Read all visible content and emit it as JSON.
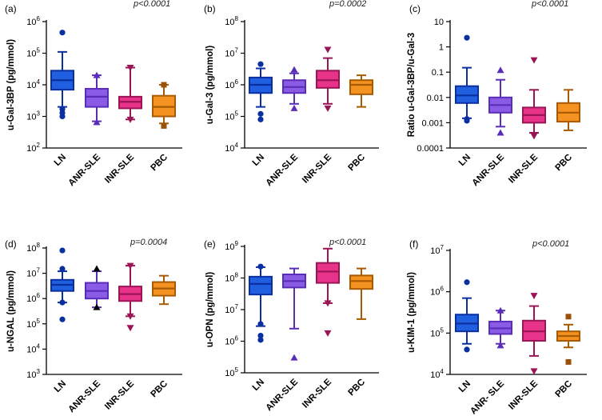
{
  "chart_data": [
    {
      "panel": "(a)",
      "type": "box",
      "pvalue": "p<0.0001",
      "ylabel": "u-Gal-3BP (pg/mmol)",
      "yscale": "log",
      "ylim": [
        100,
        1000000
      ],
      "yticks": [
        {
          "v": 100,
          "base": "10",
          "exp": "2"
        },
        {
          "v": 1000,
          "base": "10",
          "exp": "3"
        },
        {
          "v": 10000,
          "base": "10",
          "exp": "4"
        },
        {
          "v": 100000,
          "base": "10",
          "exp": "5"
        },
        {
          "v": 1000000,
          "base": "10",
          "exp": "6"
        }
      ],
      "categories": [
        "LN",
        "ANR-SLE",
        "INR-SLE",
        "PBC"
      ],
      "boxes": [
        {
          "whisker_low": 2000,
          "q1": 7000,
          "median": 14000,
          "q3": 28000,
          "whisker_high": 110000,
          "outliers": [
            1000,
            1300,
            1700,
            450000
          ]
        },
        {
          "whisker_low": 700,
          "q1": 2000,
          "median": 4200,
          "q3": 7500,
          "whisker_high": 20000,
          "outliers": [
            650,
            20000
          ]
        },
        {
          "whisker_low": 800,
          "q1": 1800,
          "median": 2900,
          "q3": 4200,
          "whisker_high": 35000,
          "outliers": [
            800,
            35000
          ]
        },
        {
          "whisker_low": 600,
          "q1": 1000,
          "median": 2000,
          "q3": 4500,
          "whisker_high": 10000,
          "outliers": [
            500,
            10000
          ]
        }
      ]
    },
    {
      "panel": "(b)",
      "type": "box",
      "pvalue": "p=0.0002",
      "ylabel": "u-Gal-3 (pg/mmol)",
      "yscale": "log",
      "ylim": [
        10000,
        100000000
      ],
      "yticks": [
        {
          "v": 10000,
          "base": "10",
          "exp": "4"
        },
        {
          "v": 100000,
          "base": "10",
          "exp": "5"
        },
        {
          "v": 1000000,
          "base": "10",
          "exp": "6"
        },
        {
          "v": 10000000,
          "base": "10",
          "exp": "7"
        },
        {
          "v": 100000000,
          "base": "10",
          "exp": "8"
        }
      ],
      "categories": [
        "LN",
        "ANR-SLE",
        "INR-SLE",
        "PBC"
      ],
      "boxes": [
        {
          "whisker_low": 200000,
          "q1": 550000,
          "median": 1000000,
          "q3": 1700000,
          "whisker_high": 3300000,
          "outliers": [
            80000,
            120000,
            4500000
          ]
        },
        {
          "whisker_low": 250000,
          "q1": 550000,
          "median": 850000,
          "q3": 1400000,
          "whisker_high": 2300000,
          "outliers": [
            180000,
            3000000
          ]
        },
        {
          "whisker_low": 250000,
          "q1": 800000,
          "median": 1400000,
          "q3": 2800000,
          "whisker_high": 7000000,
          "outliers": [
            180000,
            13000000
          ]
        },
        {
          "whisker_low": 200000,
          "q1": 500000,
          "median": 1000000,
          "q3": 1400000,
          "whisker_high": 2000000,
          "outliers": []
        }
      ]
    },
    {
      "panel": "(c)",
      "type": "box",
      "pvalue": "p<0.0001",
      "ylabel": "Ratio u-Gal-3BP/u-Gal-3",
      "yscale": "log",
      "ylim": [
        0.0001,
        10
      ],
      "yticks": [
        {
          "v": 0.0001,
          "label": "0.0001"
        },
        {
          "v": 0.001,
          "label": "0.001"
        },
        {
          "v": 0.01,
          "label": "0.01"
        },
        {
          "v": 0.1,
          "label": "0.1"
        },
        {
          "v": 1,
          "label": "1"
        },
        {
          "v": 10,
          "label": "10"
        }
      ],
      "categories": [
        "LN",
        "ANR-SLE",
        "INR-SLE",
        "PBC"
      ],
      "boxes": [
        {
          "whisker_low": 0.0015,
          "q1": 0.006,
          "median": 0.012,
          "q3": 0.028,
          "whisker_high": 0.15,
          "outliers": [
            0.0012,
            0.0014,
            2.3
          ]
        },
        {
          "whisker_low": 0.0007,
          "q1": 0.0025,
          "median": 0.005,
          "q3": 0.01,
          "whisker_high": 0.05,
          "outliers": [
            0.0004,
            0.12
          ]
        },
        {
          "whisker_low": 0.0004,
          "q1": 0.001,
          "median": 0.002,
          "q3": 0.004,
          "whisker_high": 0.02,
          "outliers": [
            0.0003,
            0.3
          ]
        },
        {
          "whisker_low": 0.0005,
          "q1": 0.0011,
          "median": 0.0025,
          "q3": 0.006,
          "whisker_high": 0.02,
          "outliers": []
        }
      ]
    },
    {
      "panel": "(d)",
      "type": "box",
      "pvalue": "p=0.0004",
      "ylabel": "u-NGAL (pg/mmol)",
      "yscale": "log",
      "ylim": [
        1000,
        100000000
      ],
      "yticks": [
        {
          "v": 1000,
          "base": "10",
          "exp": "3"
        },
        {
          "v": 10000,
          "base": "10",
          "exp": "4"
        },
        {
          "v": 100000,
          "base": "10",
          "exp": "5"
        },
        {
          "v": 1000000,
          "base": "10",
          "exp": "6"
        },
        {
          "v": 10000000,
          "base": "10",
          "exp": "7"
        },
        {
          "v": 100000000,
          "base": "10",
          "exp": "8"
        }
      ],
      "categories": [
        "LN",
        "ANR-SLE",
        "INR-SLE",
        "PBC"
      ],
      "boxes": [
        {
          "whisker_low": 700000,
          "q1": 2000000,
          "median": 3500000,
          "q3": 5500000,
          "whisker_high": 12000000,
          "outliers": [
            150000,
            700000,
            15000000,
            80000000
          ]
        },
        {
          "whisker_low": 450000,
          "q1": 1000000,
          "median": 2000000,
          "q3": 4200000,
          "whisker_high": 12000000,
          "outliers": [
            450000,
            15000000
          ]
        },
        {
          "whisker_low": 200000,
          "q1": 800000,
          "median": 1500000,
          "q3": 3000000,
          "whisker_high": 20000000,
          "outliers": [
            70000,
            200000,
            20000000
          ]
        },
        {
          "whisker_low": 600000,
          "q1": 1300000,
          "median": 2500000,
          "q3": 4500000,
          "whisker_high": 8000000,
          "outliers": []
        }
      ]
    },
    {
      "panel": "(e)",
      "type": "box",
      "pvalue": "p<0.0001",
      "ylabel": "u-OPN (pg/mmol)",
      "yscale": "log",
      "ylim": [
        100000,
        1000000000
      ],
      "yticks": [
        {
          "v": 100000,
          "base": "10",
          "exp": "5"
        },
        {
          "v": 1000000,
          "base": "10",
          "exp": "6"
        },
        {
          "v": 10000000,
          "base": "10",
          "exp": "7"
        },
        {
          "v": 100000000,
          "base": "10",
          "exp": "8"
        },
        {
          "v": 1000000000,
          "base": "10",
          "exp": "9"
        }
      ],
      "categories": [
        "LN",
        "ANR-SLE",
        "INR-SLE",
        "PBC"
      ],
      "boxes": [
        {
          "whisker_low": 3000000,
          "q1": 30000000,
          "median": 65000000,
          "q3": 110000000,
          "whisker_high": 220000000,
          "outliers": [
            1100000,
            1500000,
            3500000,
            230000000
          ]
        },
        {
          "whisker_low": 2500000,
          "q1": 50000000,
          "median": 80000000,
          "q3": 130000000,
          "whisker_high": 200000000,
          "outliers": [
            300000
          ]
        },
        {
          "whisker_low": 16000000,
          "q1": 70000000,
          "median": 160000000,
          "q3": 300000000,
          "whisker_high": 850000000,
          "outliers": [
            1800000,
            16000000
          ]
        },
        {
          "whisker_low": 5000000,
          "q1": 45000000,
          "median": 80000000,
          "q3": 120000000,
          "whisker_high": 200000000,
          "outliers": []
        }
      ]
    },
    {
      "panel": "(f)",
      "type": "box",
      "pvalue": "p<0.0001",
      "ylabel": "u-KIM-1 (pg/mmol)",
      "yscale": "log",
      "ylim": [
        10000,
        10000000
      ],
      "yticks": [
        {
          "v": 10000,
          "base": "10",
          "exp": "4"
        },
        {
          "v": 100000,
          "base": "10",
          "exp": "5"
        },
        {
          "v": 1000000,
          "base": "10",
          "exp": "6"
        },
        {
          "v": 10000000,
          "base": "10",
          "exp": "7"
        }
      ],
      "categories": [
        "LN",
        "ANR- SLE",
        "INR-SLE",
        "PBC"
      ],
      "boxes": [
        {
          "whisker_low": 55000,
          "q1": 110000,
          "median": 170000,
          "q3": 280000,
          "whisker_high": 700000,
          "outliers": [
            40000,
            1700000
          ]
        },
        {
          "whisker_low": 55000,
          "q1": 95000,
          "median": 130000,
          "q3": 190000,
          "whisker_high": 350000,
          "outliers": [
            50000,
            350000
          ]
        },
        {
          "whisker_low": 28000,
          "q1": 65000,
          "median": 110000,
          "q3": 200000,
          "whisker_high": 450000,
          "outliers": [
            12000,
            800000
          ]
        },
        {
          "whisker_low": 45000,
          "q1": 65000,
          "median": 85000,
          "q3": 110000,
          "whisker_high": 160000,
          "outliers": [
            20000,
            250000
          ]
        }
      ]
    }
  ],
  "colors": {
    "fills": [
      "#1f5fe0",
      "#8a5ce6",
      "#e8338a",
      "#f59322"
    ],
    "strokes": [
      "#0a2fa0",
      "#5a2db8",
      "#9a1456",
      "#a85a00"
    ],
    "points": [
      "#0a2fa0",
      "#5a2db8",
      "#9a1456",
      "#9a5208"
    ],
    "axis": "#000000"
  }
}
